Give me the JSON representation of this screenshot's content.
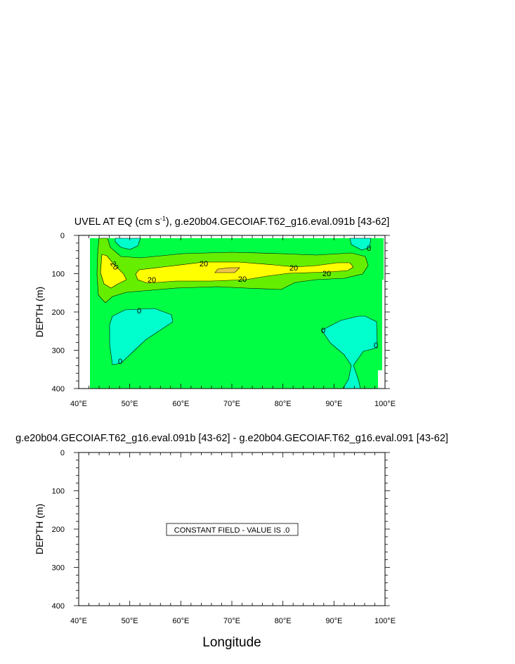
{
  "chart_data": [
    {
      "type": "contour",
      "title_main": "UVEL AT EQ (cm s",
      "title_sup": "-1",
      "title_rest": "), g.e20b04.GECOIAF.T62_g16.eval.091b [43-62]",
      "ylabel": "DEPTH (m)",
      "xlim": [
        40,
        100
      ],
      "ylim": [
        400,
        0
      ],
      "xticks": [
        "40°E",
        "50°E",
        "60°E",
        "70°E",
        "80°E",
        "90°E",
        "100°E"
      ],
      "yticks": [
        "0",
        "100",
        "200",
        "300",
        "400"
      ],
      "levels": [
        0,
        20
      ],
      "fill_colors": {
        "below_0": "#00ffcc",
        "0_to_20": "#00ff44",
        "20_to_40": "#66ee00",
        "above_40": "#ffff00"
      },
      "contour_labels": [
        "20",
        "20",
        "20",
        "20",
        "20",
        "20",
        "0",
        "0",
        "0",
        "0",
        "0"
      ]
    },
    {
      "type": "contour",
      "title": "g.e20b04.GECOIAF.T62_g16.eval.091b [43-62] - g.e20b04.GECOIAF.T62_g16.eval.091 [43-62]",
      "ylabel": "DEPTH (m)",
      "xlabel": "Longitude",
      "xlim": [
        40,
        100
      ],
      "ylim": [
        400,
        0
      ],
      "xticks": [
        "40°E",
        "50°E",
        "60°E",
        "70°E",
        "80°E",
        "90°E",
        "100°E"
      ],
      "yticks": [
        "0",
        "100",
        "200",
        "300",
        "400"
      ],
      "annotation": "CONSTANT FIELD - VALUE IS .0"
    }
  ]
}
